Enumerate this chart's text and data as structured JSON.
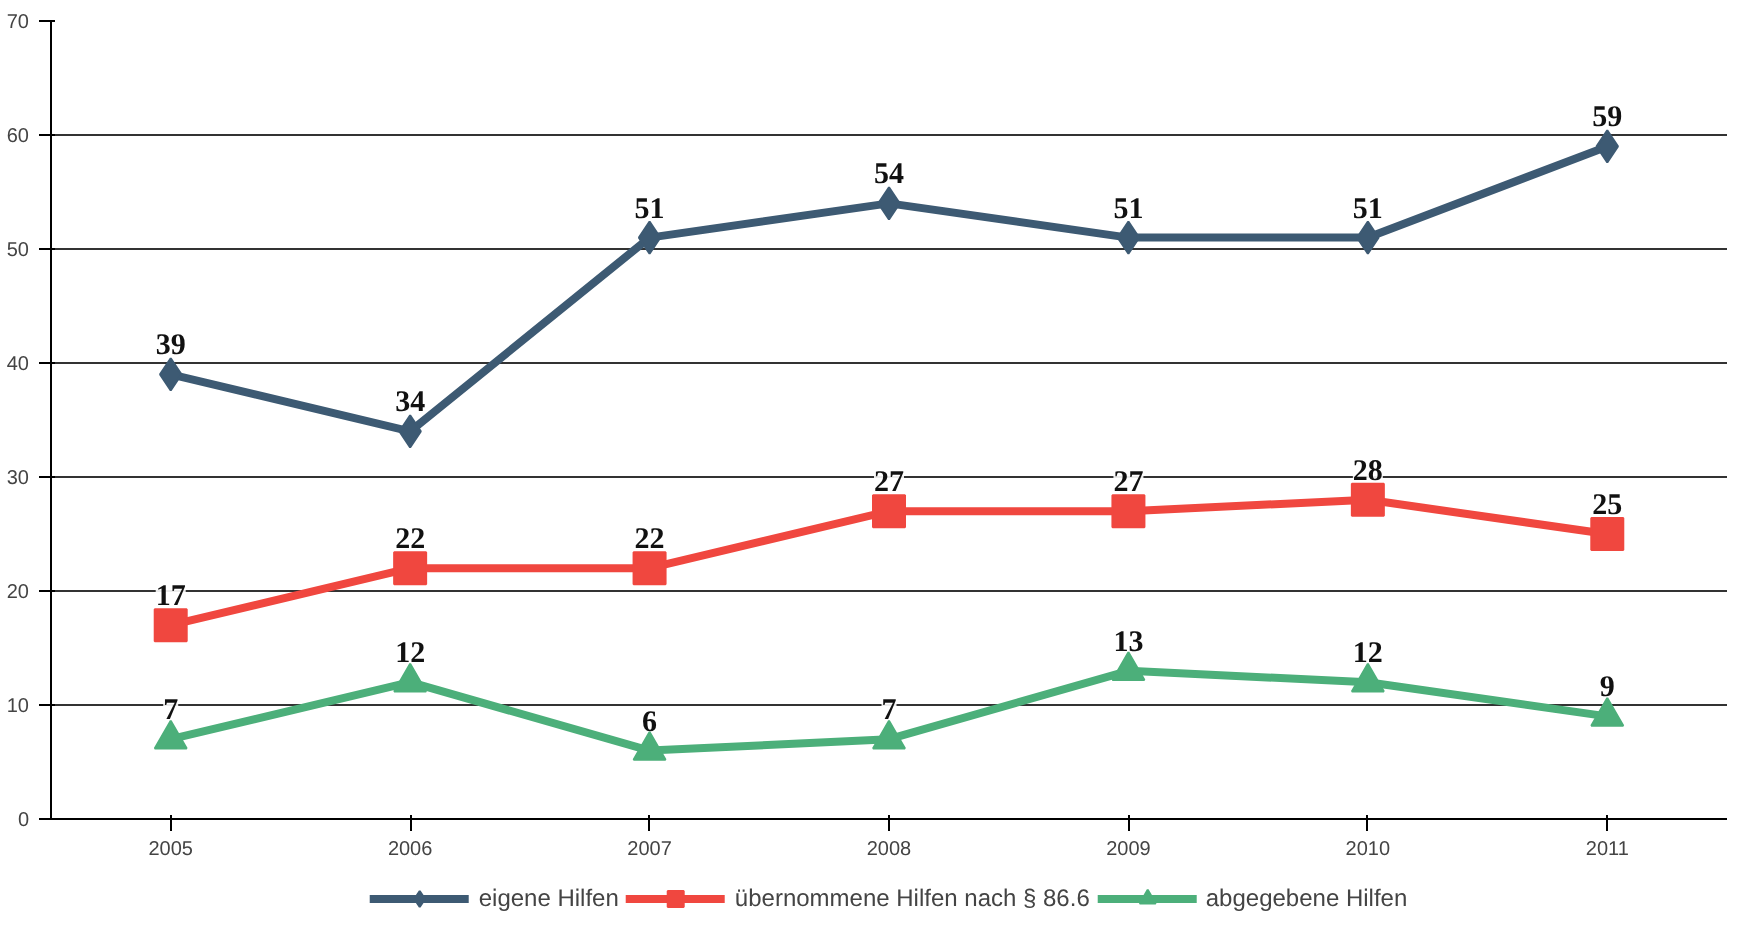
{
  "chart_data": {
    "type": "line",
    "categories": [
      "2005",
      "2006",
      "2007",
      "2008",
      "2009",
      "2010",
      "2011"
    ],
    "series": [
      {
        "name": "eigene Hilfen",
        "color": "#3d5a73",
        "marker": "diamond",
        "values": [
          39,
          34,
          51,
          54,
          51,
          51,
          59
        ]
      },
      {
        "name": "übernommene Hilfen nach § 86.6",
        "color": "#f0473f",
        "marker": "square",
        "values": [
          17,
          22,
          22,
          27,
          27,
          28,
          25
        ]
      },
      {
        "name": "abgegebene Hilfen",
        "color": "#4caf7a",
        "marker": "triangle",
        "values": [
          7,
          12,
          6,
          7,
          13,
          12,
          9
        ]
      }
    ],
    "ylim": [
      0,
      70
    ],
    "yticks": [
      0,
      10,
      20,
      30,
      40,
      50,
      60,
      70
    ],
    "grid": "y",
    "legend": "bottom",
    "data_labels": true,
    "line_style": "solid"
  }
}
